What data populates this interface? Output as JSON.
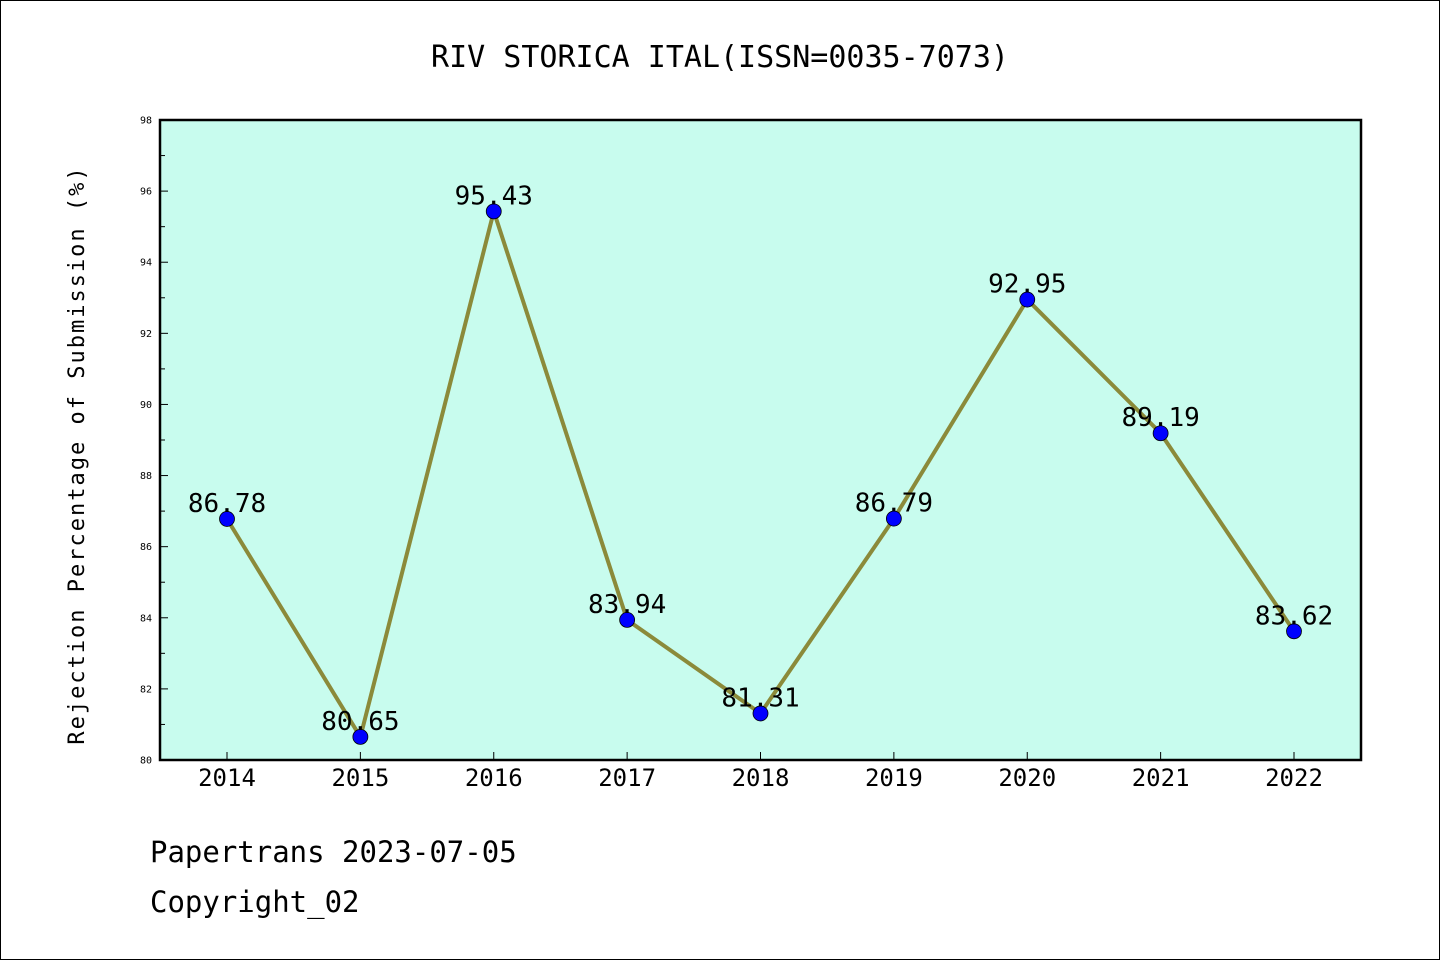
{
  "chart_data": {
    "type": "line",
    "title": "RIV STORICA ITAL(ISSN=0035-7073)",
    "ylabel": "Rejection Percentage of Submission (%)",
    "xlabel": "",
    "categories": [
      "2014",
      "2015",
      "2016",
      "2017",
      "2018",
      "2019",
      "2020",
      "2021",
      "2022"
    ],
    "values": [
      86.78,
      80.65,
      95.43,
      83.94,
      81.31,
      86.79,
      92.95,
      89.19,
      83.62
    ],
    "labels": [
      "86.78",
      "80.65",
      "95.43",
      "83.94",
      "81.31",
      "86.79",
      "92.95",
      "89.19",
      "83.62"
    ],
    "ylim": [
      80,
      98
    ],
    "yticks": [
      "80",
      "82",
      "84",
      "86",
      "88",
      "90",
      "92",
      "94",
      "96",
      "98"
    ],
    "grid": false,
    "colors": {
      "plot_background": "#c8fcee",
      "line": "#8b8a3a",
      "marker": "#0000ff"
    }
  },
  "footer": {
    "line1": "Papertrans 2023-07-05",
    "line2": "Copyright_02"
  }
}
